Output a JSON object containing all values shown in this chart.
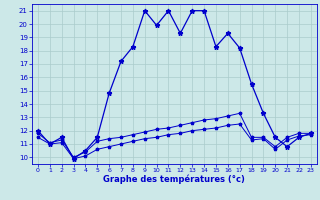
{
  "title": "Graphe des températures (°c)",
  "bg_color": "#cce8e8",
  "grid_color": "#aacccc",
  "line_color": "#0000cc",
  "x_ticks": [
    0,
    1,
    2,
    3,
    4,
    5,
    6,
    7,
    8,
    9,
    10,
    11,
    12,
    13,
    14,
    15,
    16,
    17,
    18,
    19,
    20,
    21,
    22,
    23
  ],
  "y_ticks": [
    10,
    11,
    12,
    13,
    14,
    15,
    16,
    17,
    18,
    19,
    20,
    21
  ],
  "xlim": [
    -0.5,
    23.5
  ],
  "ylim": [
    9.5,
    21.5
  ],
  "line1_x": [
    0,
    1,
    2,
    3,
    4,
    5,
    6,
    7,
    8,
    9,
    10,
    11,
    12,
    13,
    14,
    15,
    16,
    17,
    18,
    19,
    20,
    21,
    22,
    23
  ],
  "line1_y": [
    12.0,
    11.0,
    11.5,
    9.9,
    10.5,
    11.5,
    14.8,
    17.2,
    18.3,
    21.0,
    19.9,
    21.0,
    19.3,
    21.0,
    21.0,
    18.3,
    19.3,
    18.2,
    15.5,
    13.3,
    11.5,
    10.8,
    11.5,
    11.8
  ],
  "line2_x": [
    0,
    1,
    2,
    3,
    4,
    5,
    6,
    7,
    8,
    9,
    10,
    11,
    12,
    13,
    14,
    15,
    16,
    17,
    18,
    19,
    20,
    21,
    22,
    23
  ],
  "line2_y": [
    11.8,
    11.1,
    11.3,
    10.0,
    10.4,
    11.2,
    11.4,
    11.5,
    11.7,
    11.9,
    12.1,
    12.2,
    12.4,
    12.6,
    12.8,
    12.9,
    13.1,
    13.3,
    11.5,
    11.5,
    10.8,
    11.5,
    11.8,
    11.8
  ],
  "line3_x": [
    0,
    1,
    2,
    3,
    4,
    5,
    6,
    7,
    8,
    9,
    10,
    11,
    12,
    13,
    14,
    15,
    16,
    17,
    18,
    19,
    20,
    21,
    22,
    23
  ],
  "line3_y": [
    11.5,
    11.0,
    11.1,
    9.9,
    10.1,
    10.6,
    10.8,
    11.0,
    11.2,
    11.4,
    11.5,
    11.7,
    11.8,
    12.0,
    12.1,
    12.2,
    12.4,
    12.5,
    11.3,
    11.4,
    10.6,
    11.3,
    11.6,
    11.7
  ]
}
